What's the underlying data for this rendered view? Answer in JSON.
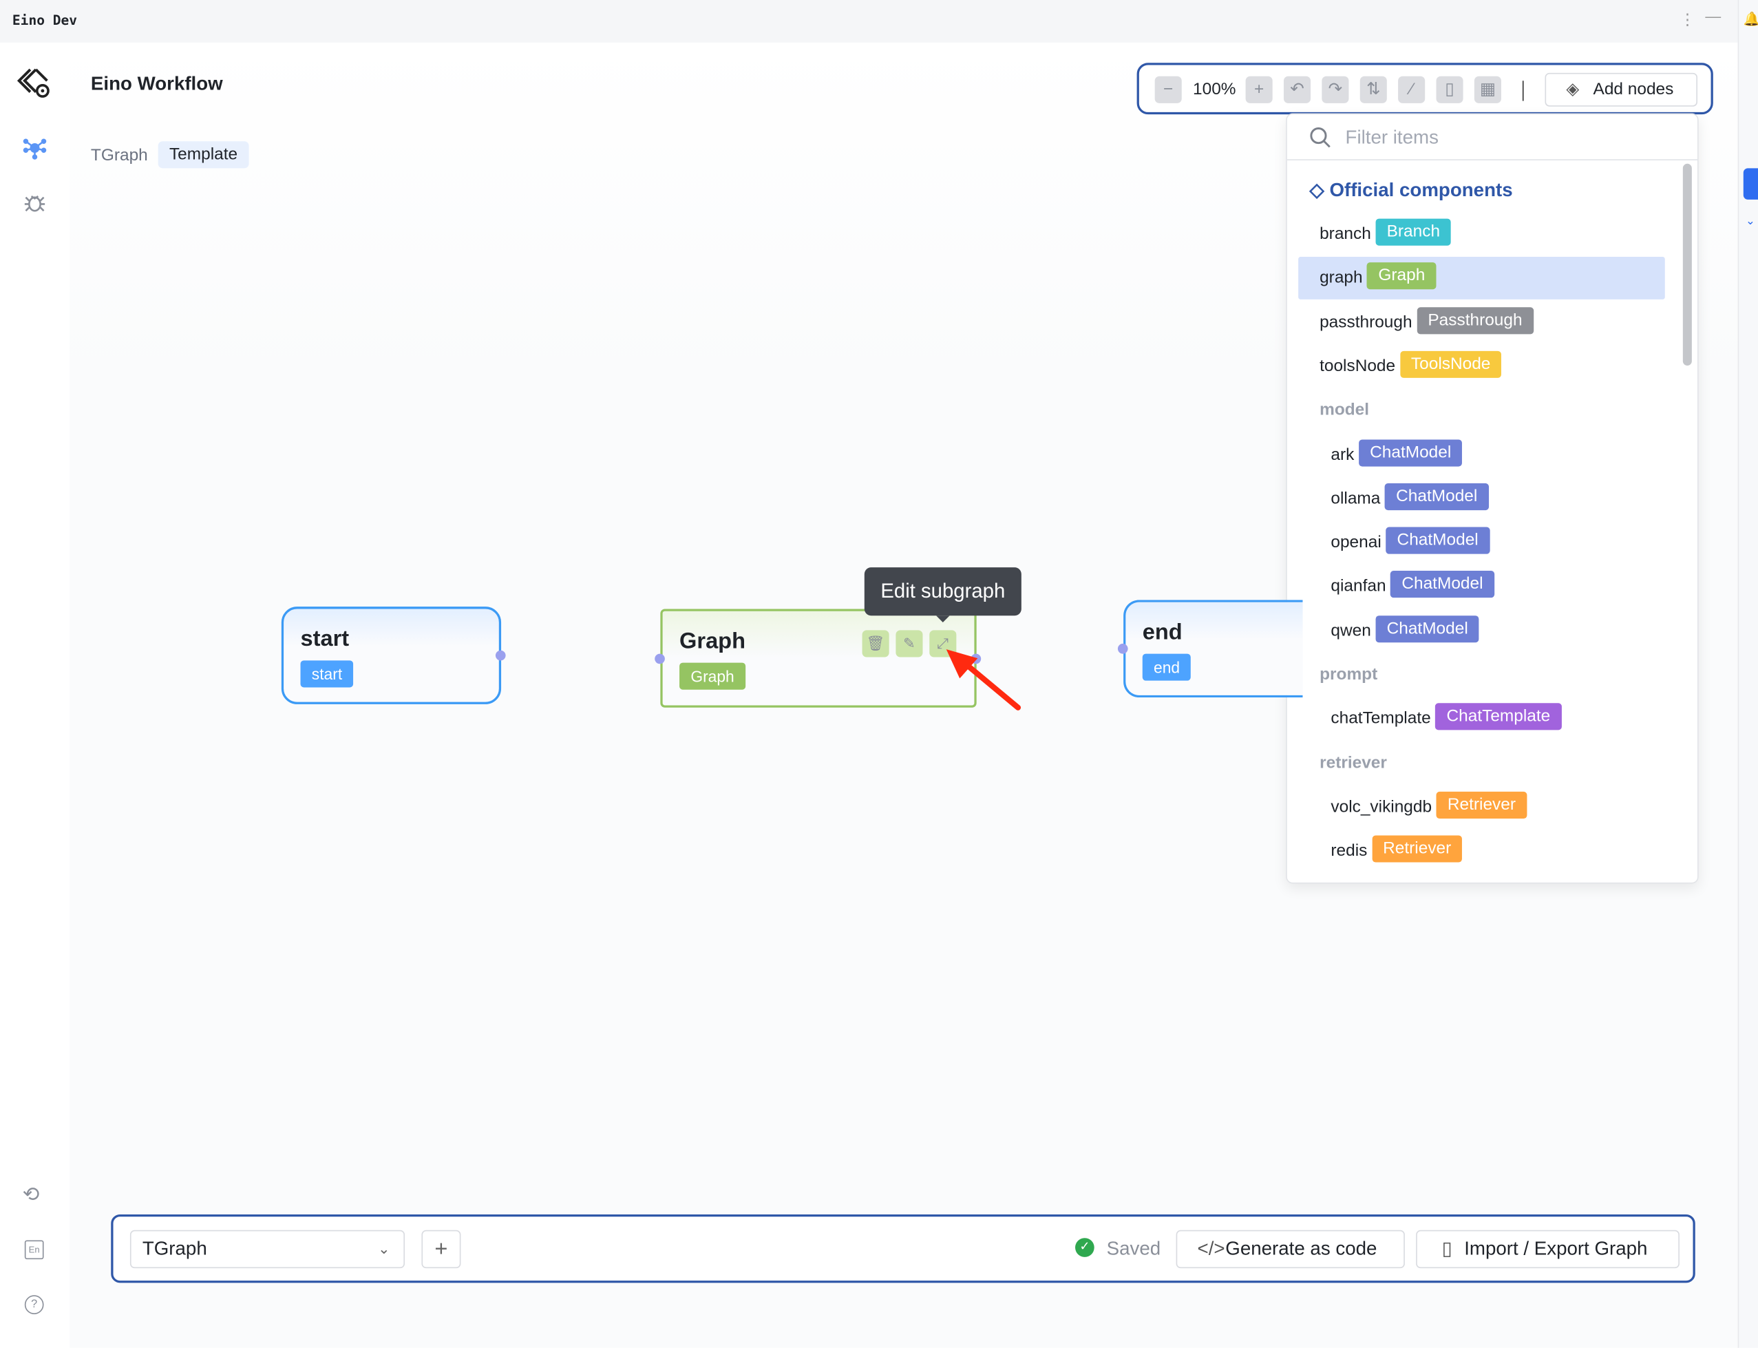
{
  "window": {
    "title": "Eino Dev"
  },
  "header": {
    "title": "Eino Workflow"
  },
  "breadcrumb": {
    "graph": "TGraph",
    "tab": "Template"
  },
  "toolbar": {
    "zoom": "100%",
    "add_nodes": "Add nodes"
  },
  "panel": {
    "search_placeholder": "Filter items",
    "section": "Official components",
    "items": [
      {
        "name": "branch",
        "badge": "Branch",
        "color": "#3cc3d1"
      },
      {
        "name": "graph",
        "badge": "Graph",
        "color": "#95c462",
        "selected": true
      },
      {
        "name": "passthrough",
        "badge": "Passthrough",
        "color": "#8e9096"
      },
      {
        "name": "toolsNode",
        "badge": "ToolsNode",
        "color": "#f8c93e"
      }
    ],
    "groups": [
      {
        "label": "model",
        "items": [
          {
            "name": "ark",
            "badge": "ChatModel",
            "color": "#6d7fd5"
          },
          {
            "name": "ollama",
            "badge": "ChatModel",
            "color": "#6d7fd5"
          },
          {
            "name": "openai",
            "badge": "ChatModel",
            "color": "#6d7fd5"
          },
          {
            "name": "qianfan",
            "badge": "ChatModel",
            "color": "#6d7fd5"
          },
          {
            "name": "qwen",
            "badge": "ChatModel",
            "color": "#6d7fd5"
          }
        ]
      },
      {
        "label": "prompt",
        "items": [
          {
            "name": "chatTemplate",
            "badge": "ChatTemplate",
            "color": "#a163dd"
          }
        ]
      },
      {
        "label": "retriever",
        "items": [
          {
            "name": "volc_vikingdb",
            "badge": "Retriever",
            "color": "#ffa43d"
          },
          {
            "name": "redis",
            "badge": "Retriever",
            "color": "#ffa43d"
          }
        ]
      }
    ]
  },
  "nodes": {
    "start": {
      "title": "start",
      "badge": "start"
    },
    "graph": {
      "title": "Graph",
      "badge": "Graph"
    },
    "end": {
      "title": "end",
      "badge": "end"
    }
  },
  "tooltip": "Edit subgraph",
  "footer": {
    "graph_select": "TGraph",
    "status": "Saved",
    "generate": "Generate as code",
    "import_export": "Import / Export Graph"
  },
  "colors": {
    "accent": "#2f57a8",
    "node_blue": "#3b9af5",
    "node_green": "#95c462",
    "arrow": "#ff2a10"
  }
}
